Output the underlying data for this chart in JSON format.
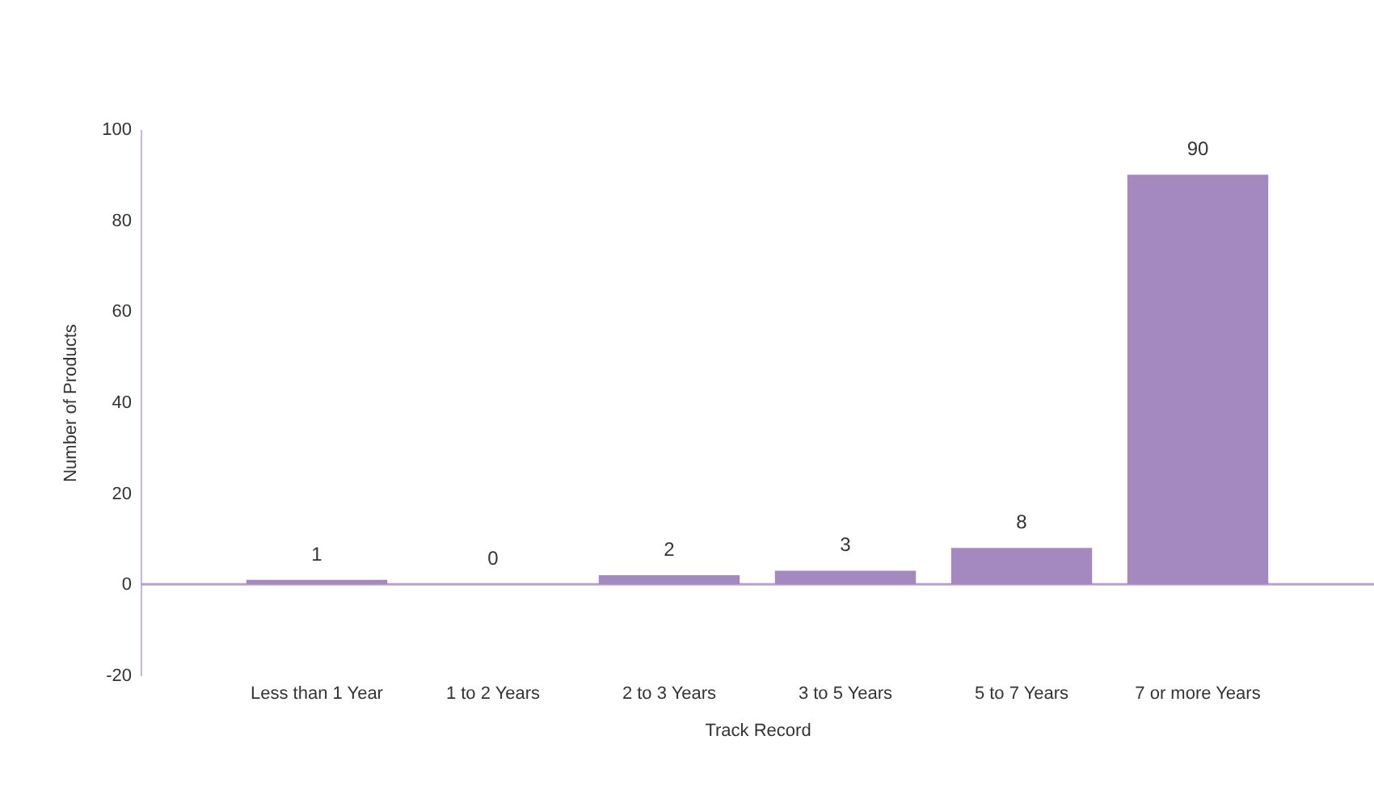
{
  "chart_data": {
    "type": "bar",
    "categories": [
      "Less than 1 Year",
      "1 to 2 Years",
      "2 to 3 Years",
      "3 to 5 Years",
      "5 to 7 Years",
      "7 or more Years"
    ],
    "values": [
      1,
      0,
      2,
      3,
      8,
      90
    ],
    "color": "#a389c0",
    "xlabel": "Track Record",
    "ylabel": "Number of Products",
    "ylim": [
      -20,
      100
    ],
    "yticks": [
      -20,
      0,
      20,
      40,
      60,
      80,
      100
    ],
    "grid": false,
    "data_labels": true,
    "ref_lines": [
      {
        "axis": "y",
        "value": 0,
        "color": "#b9a0d2"
      }
    ]
  }
}
